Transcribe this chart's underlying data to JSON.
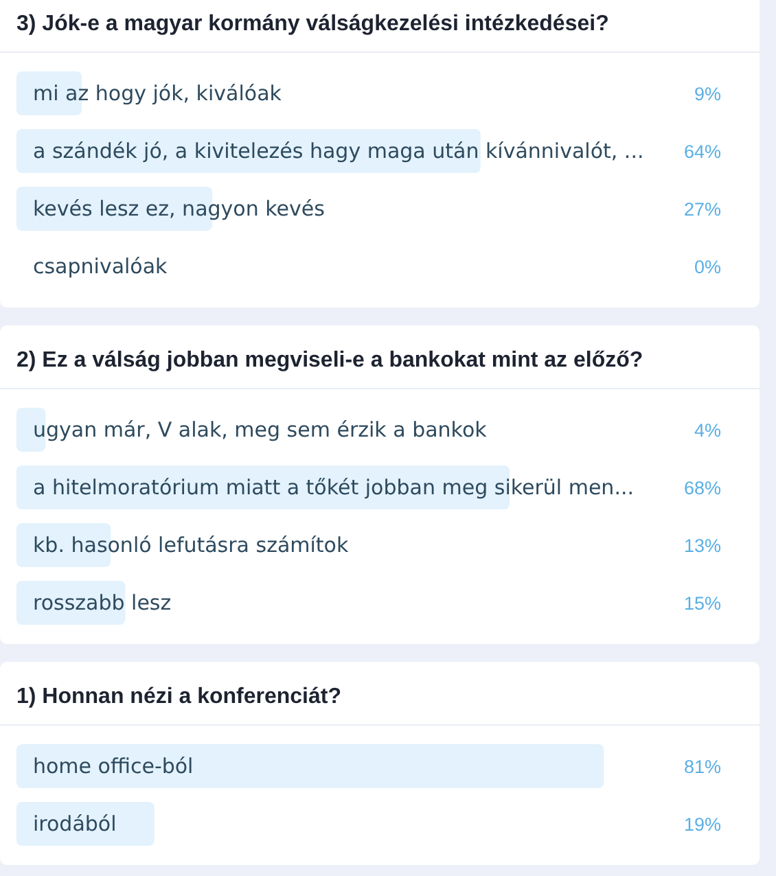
{
  "chart_data": [
    {
      "type": "bar",
      "orientation": "horizontal",
      "title": "3) Jók-e a magyar kormány válságkezelési intézkedései?",
      "categories": [
        "mi az hogy jók, kiválóak",
        "a szándék jó, a kivitelezés hagy maga után kívánnivalót, ...",
        "kevés lesz ez, nagyon kevés",
        "csapnivalóak"
      ],
      "values": [
        9,
        64,
        27,
        0
      ],
      "value_labels": [
        "9%",
        "64%",
        "27%",
        "0%"
      ],
      "color": "#e3f2fc",
      "tick_labels": "y"
    },
    {
      "type": "bar",
      "orientation": "horizontal",
      "title": "2) Ez a válság jobban megviseli-e a bankokat mint az előző?",
      "categories": [
        "ugyan már, V alak, meg sem érzik a bankok",
        "a hitelmoratórium miatt a tőkét jobban meg sikerül men...",
        "kb. hasonló lefutásra számítok",
        "rosszabb lesz"
      ],
      "values": [
        4,
        68,
        13,
        15
      ],
      "value_labels": [
        "4%",
        "68%",
        "13%",
        "15%"
      ],
      "color": "#e3f2fc",
      "tick_labels": "y"
    },
    {
      "type": "bar",
      "orientation": "horizontal",
      "title": "1) Honnan nézi a konferenciát?",
      "categories": [
        "home office-ból",
        "irodából"
      ],
      "values": [
        81,
        19
      ],
      "value_labels": [
        "81%",
        "19%"
      ],
      "color": "#e3f2fc",
      "tick_labels": "y"
    }
  ]
}
